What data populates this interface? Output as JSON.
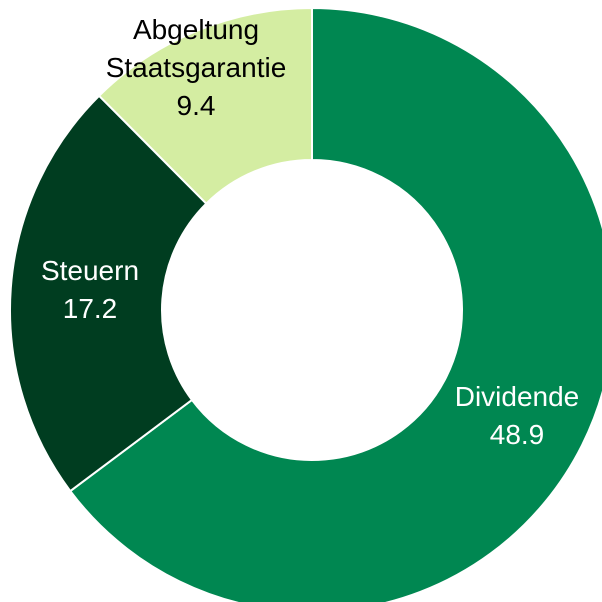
{
  "chart_data": {
    "type": "donut",
    "categories": [
      "Dividende",
      "Steuern",
      "Abgeltung Staatsgarantie"
    ],
    "values": [
      48.9,
      17.2,
      9.4
    ],
    "colors": [
      "#008751",
      "#003d20",
      "#d4eda2"
    ]
  }
}
